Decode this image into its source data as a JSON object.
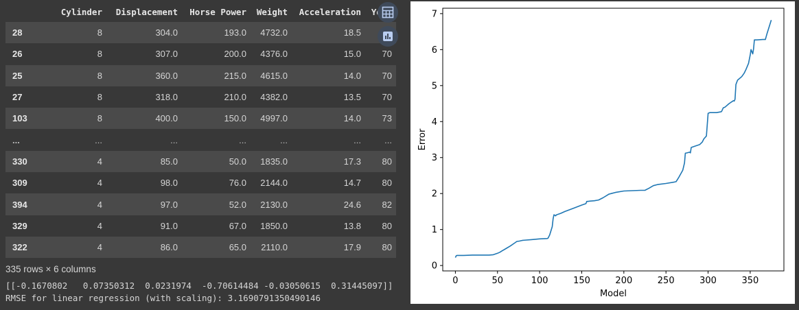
{
  "table": {
    "columns": [
      "",
      "Cylinder",
      "Displacement",
      "Horse Power",
      "Weight",
      "Acceleration",
      "Year"
    ],
    "rows": [
      {
        "index": "28",
        "cells": [
          "8",
          "304.0",
          "193.0",
          "4732.0",
          "18.5",
          "70"
        ]
      },
      {
        "index": "26",
        "cells": [
          "8",
          "307.0",
          "200.0",
          "4376.0",
          "15.0",
          "70"
        ]
      },
      {
        "index": "25",
        "cells": [
          "8",
          "360.0",
          "215.0",
          "4615.0",
          "14.0",
          "70"
        ]
      },
      {
        "index": "27",
        "cells": [
          "8",
          "318.0",
          "210.0",
          "4382.0",
          "13.5",
          "70"
        ]
      },
      {
        "index": "103",
        "cells": [
          "8",
          "400.0",
          "150.0",
          "4997.0",
          "14.0",
          "73"
        ]
      },
      {
        "index": "...",
        "cells": [
          "...",
          "...",
          "...",
          "...",
          "...",
          "..."
        ]
      },
      {
        "index": "330",
        "cells": [
          "4",
          "85.0",
          "50.0",
          "1835.0",
          "17.3",
          "80"
        ]
      },
      {
        "index": "309",
        "cells": [
          "4",
          "98.0",
          "76.0",
          "2144.0",
          "14.7",
          "80"
        ]
      },
      {
        "index": "394",
        "cells": [
          "4",
          "97.0",
          "52.0",
          "2130.0",
          "24.6",
          "82"
        ]
      },
      {
        "index": "329",
        "cells": [
          "4",
          "91.0",
          "67.0",
          "1850.0",
          "13.8",
          "80"
        ]
      },
      {
        "index": "322",
        "cells": [
          "4",
          "86.0",
          "65.0",
          "2110.0",
          "17.9",
          "80"
        ]
      }
    ]
  },
  "rows_summary": "335 rows × 6 columns",
  "stdout": {
    "coefficients": "[[-0.1670802   0.07350312  0.0231974  -0.70614484 -0.03050615  0.31445097]]",
    "rmse": "RMSE for linear regression (with scaling): 3.1690791350490146"
  },
  "icons": {
    "table_button": "table-grid-icon",
    "chart_button": "bar-chart-icon"
  },
  "colors": {
    "line": "#1f77b4",
    "button_icon": "#b9cdf0"
  },
  "chart_data": {
    "type": "line",
    "xlabel": "Model",
    "ylabel": "Error",
    "xlim": [
      -15,
      390
    ],
    "ylim": [
      -0.15,
      7.15
    ],
    "xticks": [
      0,
      50,
      100,
      150,
      200,
      250,
      300,
      350
    ],
    "yticks": [
      0,
      1,
      2,
      3,
      4,
      5,
      6,
      7
    ],
    "series": [
      {
        "x": [
          0,
          1,
          2,
          10,
          20,
          30,
          40,
          45,
          50,
          53,
          55,
          60,
          65,
          70,
          73,
          76,
          80,
          90,
          100,
          109,
          110,
          112,
          115,
          116,
          117,
          118,
          119,
          120,
          125,
          130,
          140,
          150,
          155,
          156,
          157,
          160,
          165,
          170,
          175,
          180,
          182,
          185,
          190,
          200,
          210,
          220,
          225,
          230,
          235,
          240,
          250,
          260,
          262,
          265,
          270,
          272,
          273,
          275,
          278,
          279,
          280,
          285,
          290,
          293,
          295,
          298,
          300,
          302,
          310,
          315,
          316,
          318,
          320,
          325,
          330,
          331,
          332,
          333,
          335,
          340,
          343,
          345,
          348,
          350,
          351,
          353,
          354,
          355,
          358,
          365,
          368,
          370,
          375
        ],
        "y": [
          0.22,
          0.27,
          0.28,
          0.28,
          0.29,
          0.29,
          0.29,
          0.3,
          0.34,
          0.37,
          0.4,
          0.47,
          0.54,
          0.62,
          0.67,
          0.68,
          0.7,
          0.72,
          0.74,
          0.75,
          0.76,
          0.85,
          1.08,
          1.3,
          1.41,
          1.4,
          1.38,
          1.41,
          1.45,
          1.5,
          1.59,
          1.68,
          1.72,
          1.78,
          1.78,
          1.79,
          1.8,
          1.82,
          1.88,
          1.95,
          1.98,
          2.0,
          2.03,
          2.07,
          2.08,
          2.09,
          2.09,
          2.15,
          2.22,
          2.25,
          2.28,
          2.32,
          2.33,
          2.44,
          2.65,
          2.85,
          3.12,
          3.13,
          3.15,
          3.13,
          3.28,
          3.32,
          3.36,
          3.43,
          3.52,
          3.6,
          4.23,
          4.25,
          4.25,
          4.27,
          4.28,
          4.38,
          4.4,
          4.5,
          4.58,
          4.57,
          4.62,
          5.03,
          5.15,
          5.25,
          5.35,
          5.45,
          5.62,
          5.85,
          6.0,
          5.88,
          6.02,
          6.27,
          6.27,
          6.28,
          6.28,
          6.45,
          6.82
        ]
      }
    ]
  }
}
